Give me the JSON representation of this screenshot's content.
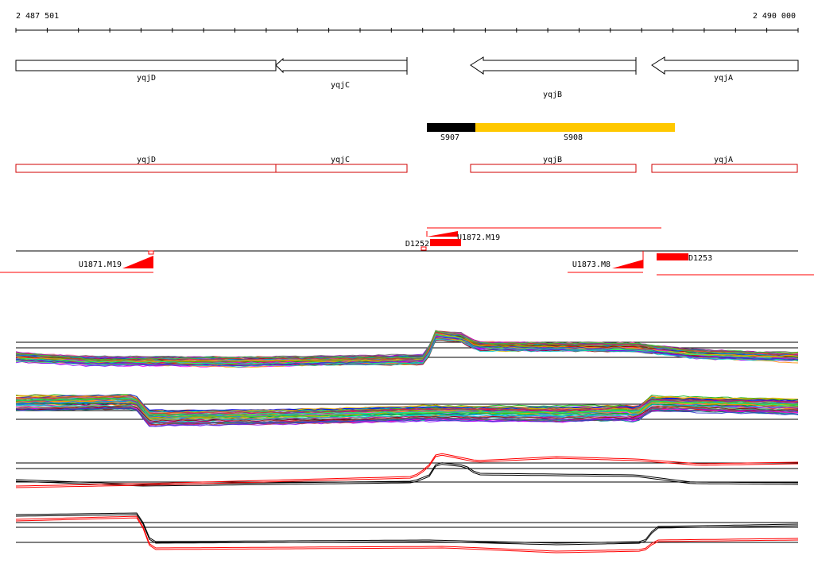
{
  "coordinates": {
    "start_label": "2 487 501",
    "end_label": "2 490 000",
    "start": 2487501,
    "end": 2490000
  },
  "colors": {
    "gene_outline": "#000000",
    "cds_outline": "#d00000",
    "segment_dark": "#000000",
    "segment_light": "#ffc800",
    "feature_red": "#ff0000",
    "axis": "#000000"
  },
  "genes": [
    {
      "name": "yqjD",
      "strand": "-",
      "label": "yqjD"
    },
    {
      "name": "yqjC",
      "strand": "-",
      "label": "yqjC"
    },
    {
      "name": "yqjB",
      "strand": "-",
      "label": "yqjB"
    },
    {
      "name": "yqjA",
      "strand": "-",
      "label": "yqjA"
    }
  ],
  "segments": [
    {
      "label": "S907",
      "color": "#000000"
    },
    {
      "label": "S908",
      "color": "#ffc800"
    }
  ],
  "cds": [
    {
      "label": "yqjD"
    },
    {
      "label": "yqjC"
    },
    {
      "label": "yqjB"
    },
    {
      "label": "yqjA"
    }
  ],
  "features": {
    "upshifts": [
      {
        "label": "U1871.M19"
      },
      {
        "label": "U1872.M19"
      },
      {
        "label": "U1873.M8"
      }
    ],
    "downshifts": [
      {
        "label": "D1252"
      },
      {
        "label": "D1253"
      }
    ]
  },
  "expression_tracks": [
    {
      "id": "track-1",
      "kind": "multi-condition",
      "series_count": 60
    },
    {
      "id": "track-2",
      "kind": "multi-condition",
      "series_count": 60
    },
    {
      "id": "track-3",
      "kind": "summary-pair",
      "series": [
        "black",
        "red"
      ]
    },
    {
      "id": "track-4",
      "kind": "summary-pair",
      "series": [
        "black",
        "red"
      ]
    }
  ]
}
